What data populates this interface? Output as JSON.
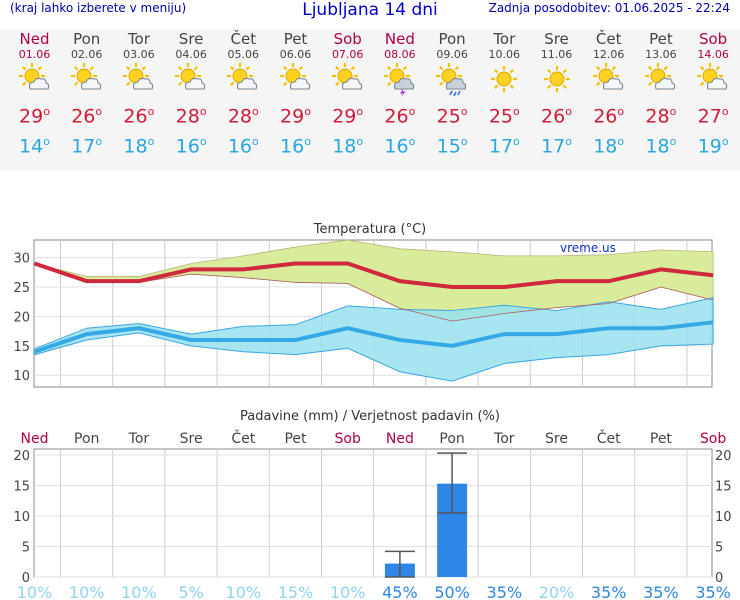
{
  "header": {
    "left_note": "(kraj lahko izberete v meniju)",
    "title": "Ljubljana 14 dni",
    "updated": "Zadnja posodobitev: 01.06.2025 - 22:24"
  },
  "days": [
    {
      "name": "Ned",
      "date": "01.06",
      "weekend": true,
      "icon": "sun-cloud-icon",
      "tmax": "29",
      "tmin": "14"
    },
    {
      "name": "Pon",
      "date": "02.06",
      "weekend": false,
      "icon": "sun-cloud-icon",
      "tmax": "26",
      "tmin": "17"
    },
    {
      "name": "Tor",
      "date": "03.06",
      "weekend": false,
      "icon": "sun-cloud-icon",
      "tmax": "26",
      "tmin": "18"
    },
    {
      "name": "Sre",
      "date": "04.06",
      "weekend": false,
      "icon": "sun-cloud-icon",
      "tmax": "28",
      "tmin": "16"
    },
    {
      "name": "Čet",
      "date": "05.06",
      "weekend": false,
      "icon": "sun-cloud-icon",
      "tmax": "28",
      "tmin": "16"
    },
    {
      "name": "Pet",
      "date": "06.06",
      "weekend": false,
      "icon": "sun-cloud-icon",
      "tmax": "29",
      "tmin": "16"
    },
    {
      "name": "Sob",
      "date": "07.06",
      "weekend": true,
      "icon": "sun-cloud-icon",
      "tmax": "29",
      "tmin": "18"
    },
    {
      "name": "Ned",
      "date": "08.06",
      "weekend": true,
      "icon": "sun-storm-icon",
      "tmax": "26",
      "tmin": "16"
    },
    {
      "name": "Pon",
      "date": "09.06",
      "weekend": false,
      "icon": "sun-rain-icon",
      "tmax": "25",
      "tmin": "15"
    },
    {
      "name": "Tor",
      "date": "10.06",
      "weekend": false,
      "icon": "sun-icon",
      "tmax": "25",
      "tmin": "17"
    },
    {
      "name": "Sre",
      "date": "11.06",
      "weekend": false,
      "icon": "sun-icon",
      "tmax": "26",
      "tmin": "17"
    },
    {
      "name": "Čet",
      "date": "12.06",
      "weekend": false,
      "icon": "sun-cloud-icon",
      "tmax": "26",
      "tmin": "18"
    },
    {
      "name": "Pet",
      "date": "13.06",
      "weekend": false,
      "icon": "sun-cloud-icon",
      "tmax": "28",
      "tmin": "18"
    },
    {
      "name": "Sob",
      "date": "14.06",
      "weekend": true,
      "icon": "sun-cloud-icon",
      "tmax": "27",
      "tmin": "19"
    }
  ],
  "degree_symbol": "o",
  "colors": {
    "max": "#d0293e",
    "min": "#35a9e6",
    "max_band": "#d8ec9c",
    "min_band": "#98e2ef",
    "overlap": "#9fd88b",
    "precip": "#2e86e6",
    "weekend": "#b00045",
    "pct_high": "#2e86e6",
    "pct_low": "#8fd3f0"
  },
  "chart_data": [
    {
      "type": "line",
      "title": "Temperatura (°C)",
      "watermark": "vreme.us",
      "ylim": [
        8,
        33
      ],
      "yticks": [
        10,
        15,
        20,
        25,
        30
      ],
      "series": [
        {
          "values": [
            29,
            26,
            26,
            28,
            28,
            29,
            29,
            26,
            25,
            25,
            26,
            26,
            28,
            27
          ]
        },
        {
          "values": [
            14,
            17,
            18,
            16,
            16,
            16,
            18,
            16,
            15,
            17,
            17,
            18,
            18,
            19
          ]
        }
      ],
      "max_band_upper": [
        29,
        26.8,
        26.8,
        29,
        30.3,
        31.8,
        33,
        31.5,
        31,
        30.3,
        30.3,
        30.5,
        31.3,
        31
      ],
      "max_band_lower": [
        29,
        25.8,
        25.8,
        27.2,
        26.6,
        25.8,
        25.6,
        21.4,
        19.2,
        20.5,
        21.5,
        22.2,
        25,
        22.8
      ],
      "min_band_upper": [
        14.5,
        18,
        18.8,
        17,
        18.3,
        18.6,
        21.8,
        21.2,
        21,
        21.9,
        21,
        22.5,
        21.2,
        23.2
      ],
      "min_band_lower": [
        13.5,
        16,
        17.2,
        15,
        14,
        13.5,
        14.6,
        10.6,
        9,
        12,
        13,
        13.5,
        15,
        15.3
      ]
    },
    {
      "type": "bar",
      "title": "Padavine (mm) / Verjetnost padavin (%)",
      "categories": [
        "Ned",
        "Pon",
        "Tor",
        "Sre",
        "Čet",
        "Pet",
        "Sob",
        "Ned",
        "Pon",
        "Tor",
        "Sre",
        "Čet",
        "Pet",
        "Sob"
      ],
      "values": [
        0,
        0,
        0,
        0,
        0,
        0,
        0,
        2.2,
        15.3,
        0,
        0,
        0,
        0,
        0
      ],
      "error_high": [
        null,
        null,
        null,
        null,
        null,
        null,
        null,
        4.2,
        20.3,
        null,
        null,
        null,
        null,
        null
      ],
      "error_low": [
        null,
        null,
        null,
        null,
        null,
        null,
        null,
        0,
        10.5,
        null,
        null,
        null,
        null,
        null
      ],
      "ylim": [
        0,
        20
      ],
      "yticks": [
        0,
        5,
        10,
        15,
        20
      ],
      "probability": [
        "10%",
        "10%",
        "10%",
        "5%",
        "10%",
        "15%",
        "10%",
        "45%",
        "50%",
        "35%",
        "20%",
        "35%",
        "35%",
        "35%"
      ]
    }
  ]
}
